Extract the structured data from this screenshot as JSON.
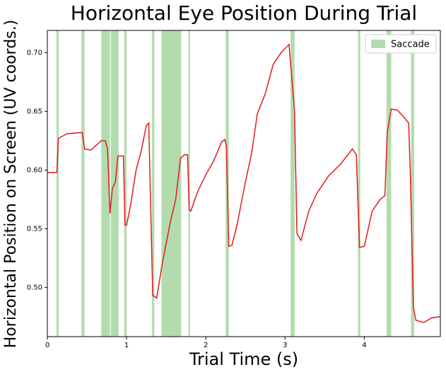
{
  "chart_data": {
    "type": "line",
    "title": "Horizontal Eye Position During Trial",
    "xlabel": "Trial Time (s)",
    "ylabel": "Horizontal Position on Screen (UV coords.)",
    "x": [
      0,
      0.12,
      0.14,
      0.25,
      0.44,
      0.47,
      0.55,
      0.68,
      0.73,
      0.76,
      0.79,
      0.82,
      0.86,
      0.89,
      0.96,
      0.98,
      1.0,
      1.05,
      1.12,
      1.18,
      1.25,
      1.28,
      1.33,
      1.38,
      1.45,
      1.55,
      1.62,
      1.68,
      1.73,
      1.77,
      1.79,
      1.81,
      1.9,
      2.0,
      2.1,
      2.2,
      2.24,
      2.26,
      2.29,
      2.33,
      2.4,
      2.5,
      2.58,
      2.65,
      2.75,
      2.85,
      2.95,
      3.05,
      3.12,
      3.15,
      3.2,
      3.3,
      3.4,
      3.55,
      3.7,
      3.85,
      3.9,
      3.94,
      4.0,
      4.1,
      4.2,
      4.26,
      4.29,
      4.34,
      4.42,
      4.5,
      4.56,
      4.58,
      4.62,
      4.65,
      4.75,
      4.85,
      4.96
    ],
    "values": [
      0.598,
      0.598,
      0.627,
      0.631,
      0.632,
      0.618,
      0.617,
      0.625,
      0.625,
      0.618,
      0.563,
      0.584,
      0.59,
      0.612,
      0.612,
      0.553,
      0.553,
      0.57,
      0.6,
      0.615,
      0.638,
      0.64,
      0.493,
      0.491,
      0.52,
      0.555,
      0.575,
      0.61,
      0.613,
      0.613,
      0.566,
      0.565,
      0.582,
      0.596,
      0.608,
      0.624,
      0.626,
      0.62,
      0.535,
      0.536,
      0.555,
      0.59,
      0.615,
      0.648,
      0.665,
      0.69,
      0.7,
      0.707,
      0.65,
      0.546,
      0.54,
      0.565,
      0.58,
      0.595,
      0.605,
      0.618,
      0.613,
      0.534,
      0.535,
      0.565,
      0.575,
      0.578,
      0.632,
      0.652,
      0.651,
      0.645,
      0.64,
      0.6,
      0.483,
      0.472,
      0.47,
      0.474,
      0.475
    ],
    "color": "#e41a1c",
    "spans": {
      "name": "Saccade",
      "color": "#b3dcae",
      "ranges": [
        [
          0.116,
          0.143
        ],
        [
          0.43,
          0.47
        ],
        [
          0.68,
          0.79
        ],
        [
          0.8,
          0.9
        ],
        [
          0.97,
          1.0
        ],
        [
          1.32,
          1.35
        ],
        [
          1.44,
          1.69
        ],
        [
          1.78,
          1.8
        ],
        [
          2.25,
          2.29
        ],
        [
          3.07,
          3.12
        ],
        [
          3.92,
          3.95
        ],
        [
          4.28,
          4.34
        ],
        [
          4.59,
          4.63
        ]
      ]
    },
    "legend": "upper right",
    "xlim": [
      0,
      4.96
    ],
    "xticks": [
      0,
      1,
      2,
      3,
      4
    ],
    "ylim": [
      0.458,
      0.719
    ],
    "yticks": [
      {
        "value": 0.5,
        "label": "0.50"
      },
      0.55,
      {
        "value": 0.6,
        "label": "0.60"
      },
      0.65,
      {
        "value": 0.7,
        "label": "0.70"
      }
    ]
  }
}
